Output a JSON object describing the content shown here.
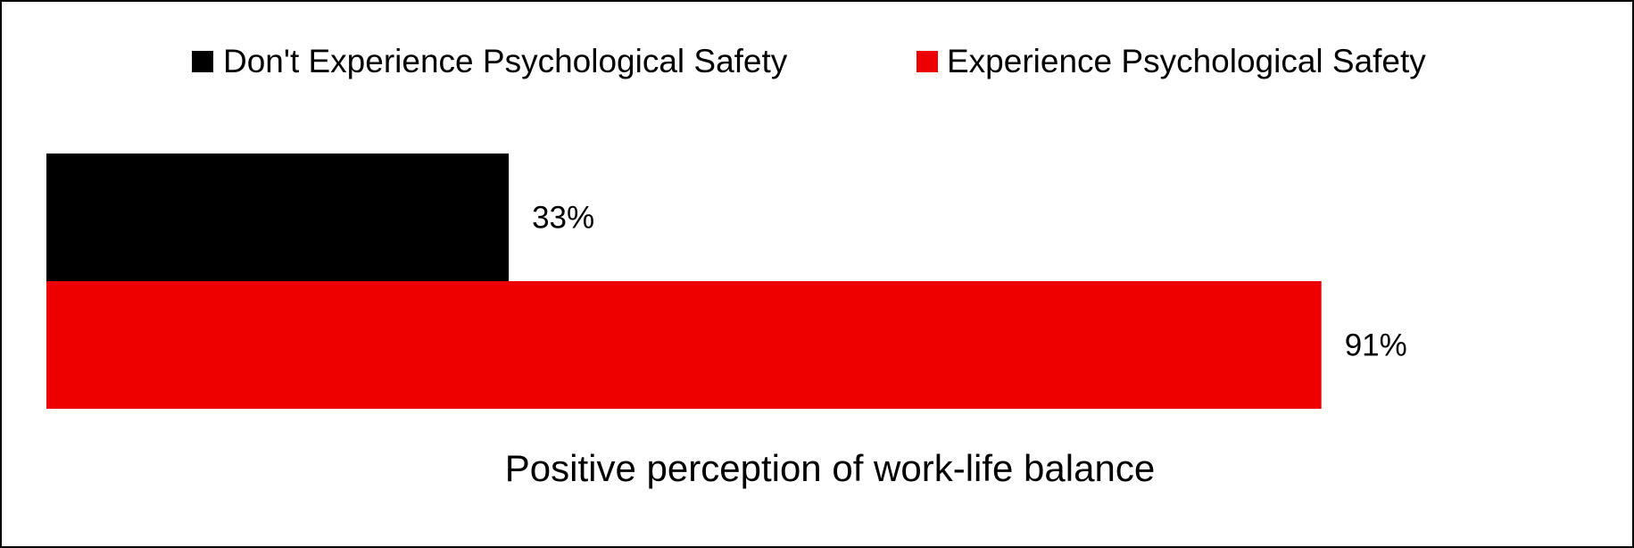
{
  "chart_data": {
    "type": "bar",
    "orientation": "horizontal",
    "categories": [
      "Positive perception of work-life balance"
    ],
    "series": [
      {
        "name": "Don't Experience Psychological Safety",
        "values": [
          33
        ],
        "labels": [
          "33%"
        ],
        "color": "#000000"
      },
      {
        "name": "Experience Psychological Safety",
        "values": [
          91
        ],
        "labels": [
          "91%"
        ],
        "color": "#ee0000"
      }
    ],
    "unit": "%",
    "xlim": [
      0,
      100
    ],
    "grid": false,
    "legend_position": "top-center",
    "title": "",
    "xlabel": "",
    "ylabel": ""
  }
}
